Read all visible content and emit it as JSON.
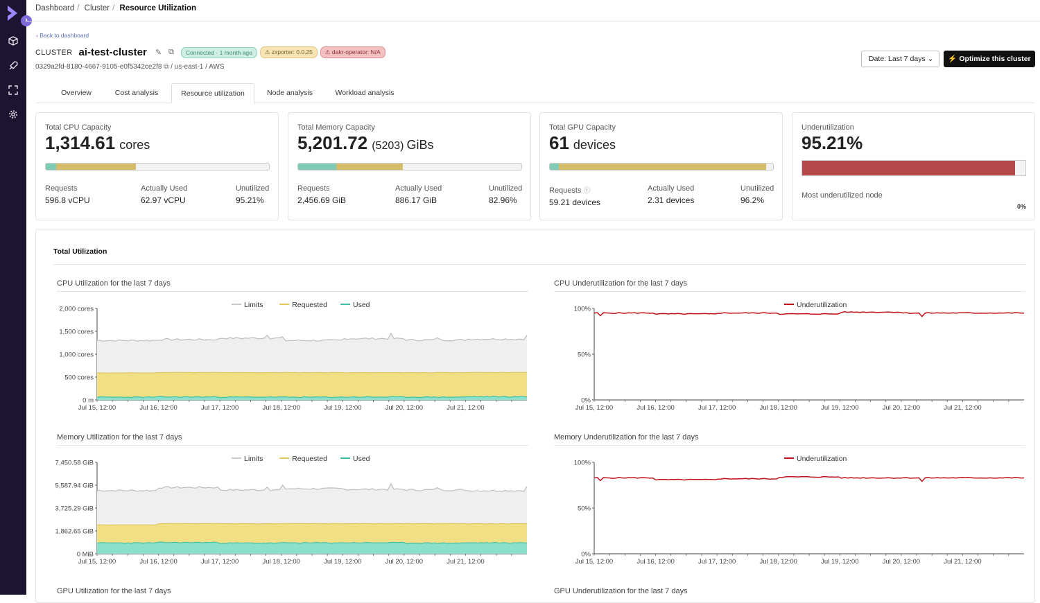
{
  "breadcrumb": [
    "Dashboard",
    "Cluster",
    "Resource Utilization"
  ],
  "back_link": "Back to dashboard",
  "cluster": {
    "keyword": "CLUSTER",
    "name": "ai-test-cluster",
    "badges": [
      "Connected · 1 month ago",
      "zxporter: 0.0.25",
      "dakr-operator: N/A"
    ],
    "id": "0329a2fd-8180-4667-9105-e0f5342ce2f8",
    "location": "/ us-east-1 / AWS"
  },
  "header_actions": {
    "date_label": "Date: Last 7 days",
    "optimize_label": "Optimize this cluster"
  },
  "tabs": [
    "Overview",
    "Cost analysis",
    "Resource utilization",
    "Node analysis",
    "Workload analysis"
  ],
  "active_tab": "Resource utilization",
  "colors": {
    "requests": "#7fcbb6",
    "used": "#d5bc68",
    "under": "#b5494b",
    "limits": "#cccccc",
    "requested": "#e0c95f",
    "used_line": "#3cc0a5",
    "underutil": "#c0111a"
  },
  "cards": {
    "cpu": {
      "title": "Total CPU Capacity",
      "value": "1,314.61",
      "unit": "cores",
      "req_label": "Requests",
      "req": "596.8 vCPU",
      "used_label": "Actually Used",
      "used": "62.97 vCPU",
      "un_label": "Unutilized",
      "un": "95.21%",
      "bar": {
        "teal": 0.048,
        "yellow": 0.405
      }
    },
    "memory": {
      "title": "Total Memory Capacity",
      "value": "5,201.72",
      "paren": "(5203)",
      "unit": "GiBs",
      "req_label": "Requests",
      "req": "2,456.69 GiB",
      "used_label": "Actually Used",
      "used": "886.17 GiB",
      "un_label": "Unutilized",
      "un": "82.96%",
      "bar": {
        "teal": 0.17,
        "yellow": 0.47
      }
    },
    "gpu": {
      "title": "Total GPU Capacity",
      "value": "61",
      "unit": "devices",
      "req_label": "Requests",
      "req": "59.21 devices",
      "used_label": "Actually Used",
      "used": "2.31 devices",
      "un_label": "Unutilized",
      "un": "96.2%",
      "bar": {
        "teal": 0.04,
        "yellow": 0.97
      }
    },
    "under": {
      "title": "Underutilization",
      "value": "95.21%",
      "fill": 0.9521,
      "most_label": "Most underutilized node",
      "most_value": "0%"
    }
  },
  "panel_tab": "Total Utilization",
  "charts": {
    "cpu_util": {
      "title": "CPU Utilization for the last 7 days",
      "legend": [
        "Limits",
        "Requested",
        "Used"
      ],
      "yticks": [
        "2,000 cores",
        "1,500 cores",
        "1,000 cores",
        "500 cores",
        "0 m"
      ],
      "ymax": 2000
    },
    "cpu_under": {
      "title": "CPU Underutilization for the last 7 days",
      "legend": [
        "Underutilization"
      ],
      "yticks": [
        "100%",
        "50%",
        "0%"
      ],
      "ymax": 100
    },
    "mem_util": {
      "title": "Memory Utilization for the last 7 days",
      "legend": [
        "Limits",
        "Requested",
        "Used"
      ],
      "yticks": [
        "7,450.58 GiB",
        "5,587.94 GiB",
        "3,725.29 GiB",
        "1,862.65 GiB",
        "0 MiB"
      ],
      "ymax": 7450.58
    },
    "mem_under": {
      "title": "Memory Underutilization for the last 7 days",
      "legend": [
        "Underutilization"
      ],
      "yticks": [
        "100%",
        "50%",
        "0%"
      ],
      "ymax": 100
    },
    "gpu_util": {
      "title": "GPU Utilization for the last 7 days"
    },
    "gpu_under": {
      "title": "GPU Underutilization for the last 7 days"
    }
  },
  "xticks": [
    "Jul 15, 12:00",
    "Jul 16, 12:00",
    "Jul 17, 12:00",
    "Jul 18, 12:00",
    "Jul 19, 12:00",
    "Jul 20, 12:00",
    "Jul 21, 12:00"
  ],
  "chart_data": [
    {
      "type": "area",
      "title": "CPU Utilization for the last 7 days",
      "ylabel": "cores",
      "ylim": [
        0,
        2000
      ],
      "x": [
        "Jul 15, 12:00",
        "Jul 16, 12:00",
        "Jul 17, 12:00",
        "Jul 18, 12:00",
        "Jul 19, 12:00",
        "Jul 20, 12:00",
        "Jul 21, 12:00"
      ],
      "series": [
        {
          "name": "Limits",
          "values": [
            1300,
            1320,
            1350,
            1300,
            1340,
            1310,
            1330
          ]
        },
        {
          "name": "Requested",
          "values": [
            590,
            600,
            597,
            598,
            596,
            597,
            600
          ]
        },
        {
          "name": "Used",
          "values": [
            60,
            65,
            62,
            60,
            63,
            62,
            70
          ]
        }
      ],
      "legend": "top"
    },
    {
      "type": "line",
      "title": "CPU Underutilization for the last 7 days",
      "ylim": [
        0,
        100
      ],
      "x": [
        "Jul 15, 12:00",
        "Jul 16, 12:00",
        "Jul 17, 12:00",
        "Jul 18, 12:00",
        "Jul 19, 12:00",
        "Jul 20, 12:00",
        "Jul 21, 12:00"
      ],
      "series": [
        {
          "name": "Underutilization",
          "values": [
            95,
            94,
            95,
            94,
            96,
            95,
            95
          ]
        }
      ],
      "legend": "top"
    },
    {
      "type": "area",
      "title": "Memory Utilization for the last 7 days",
      "ylabel": "GiB",
      "ylim": [
        0,
        7450.58
      ],
      "x": [
        "Jul 15, 12:00",
        "Jul 16, 12:00",
        "Jul 17, 12:00",
        "Jul 18, 12:00",
        "Jul 19, 12:00",
        "Jul 20, 12:00",
        "Jul 21, 12:00"
      ],
      "series": [
        {
          "name": "Limits",
          "values": [
            5150,
            5400,
            5200,
            5300,
            5250,
            5200,
            5150
          ]
        },
        {
          "name": "Requested",
          "values": [
            2350,
            2460,
            2450,
            2460,
            2455,
            2460,
            2450
          ]
        },
        {
          "name": "Used",
          "values": [
            880,
            920,
            870,
            890,
            900,
            870,
            890
          ]
        }
      ],
      "legend": "top"
    },
    {
      "type": "line",
      "title": "Memory Underutilization for the last 7 days",
      "ylim": [
        0,
        100
      ],
      "x": [
        "Jul 15, 12:00",
        "Jul 16, 12:00",
        "Jul 17, 12:00",
        "Jul 18, 12:00",
        "Jul 19, 12:00",
        "Jul 20, 12:00",
        "Jul 21, 12:00"
      ],
      "series": [
        {
          "name": "Underutilization",
          "values": [
            83,
            81,
            82,
            84,
            83,
            83,
            83
          ]
        }
      ],
      "legend": "top"
    }
  ]
}
